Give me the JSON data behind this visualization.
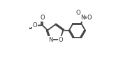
{
  "bg_color": "#ffffff",
  "line_color": "#444444",
  "line_width": 1.3,
  "font_size": 6.0,
  "fig_width": 1.86,
  "fig_height": 0.82,
  "dpi": 100,
  "xlim": [
    0.0,
    1.0
  ],
  "ylim": [
    0.1,
    0.9
  ]
}
